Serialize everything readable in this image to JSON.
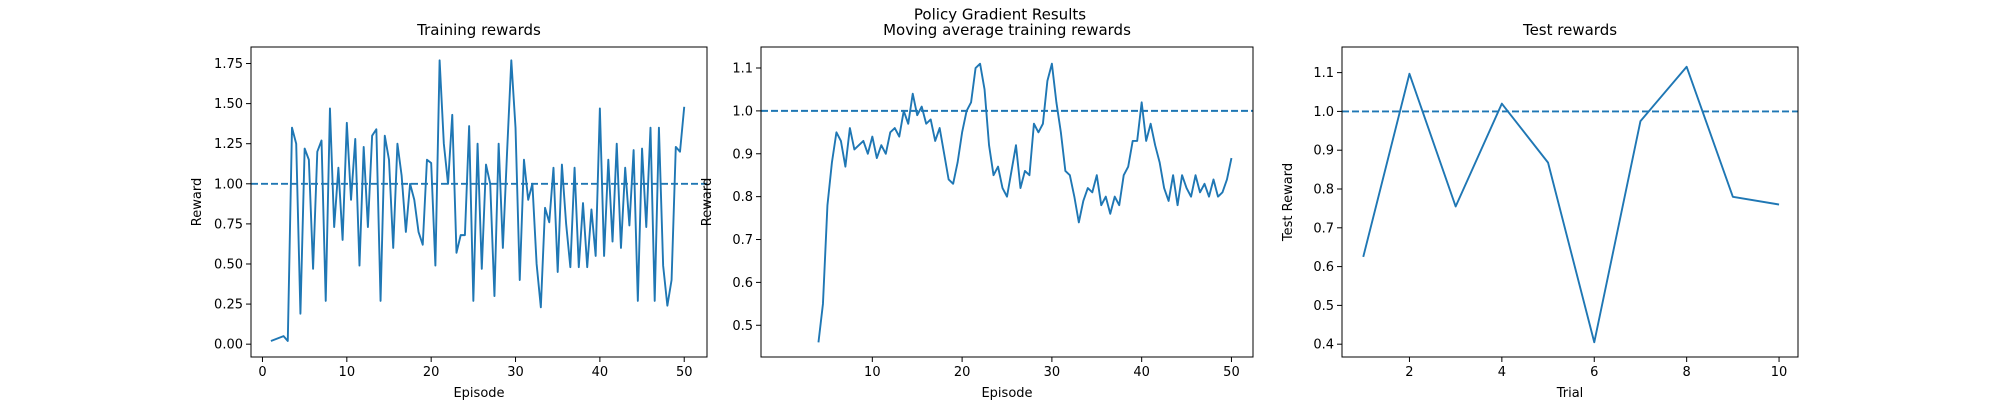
{
  "title": "Policy Gradient Results",
  "chart_data": [
    {
      "type": "line",
      "title": "Training rewards",
      "xlabel": "Episode",
      "ylabel": "Reward",
      "x": [
        1,
        1.5,
        2,
        2.5,
        3,
        3.5,
        4,
        4.5,
        5,
        5.5,
        6,
        6.5,
        7,
        7.5,
        8,
        8.5,
        9,
        9.5,
        10,
        10.5,
        11,
        11.5,
        12,
        12.5,
        13,
        13.5,
        14,
        14.5,
        15,
        15.5,
        16,
        16.5,
        17,
        17.5,
        18,
        18.5,
        19,
        19.5,
        20,
        20.5,
        21,
        21.5,
        22,
        22.5,
        23,
        23.5,
        24,
        24.5,
        25,
        25.5,
        26,
        26.5,
        27,
        27.5,
        28,
        28.5,
        29,
        29.5,
        30,
        30.5,
        31,
        31.5,
        32,
        32.5,
        33,
        33.5,
        34,
        34.5,
        35,
        35.5,
        36,
        36.5,
        37,
        37.5,
        38,
        38.5,
        39,
        39.5,
        40,
        40.5,
        41,
        41.5,
        42,
        42.5,
        43,
        43.5,
        44,
        44.5,
        45,
        45.5,
        46,
        46.5,
        47,
        47.5,
        48,
        48.5,
        49,
        49.5,
        50
      ],
      "series": [
        {
          "color": "#1f77b4",
          "values": [
            0.02,
            0.03,
            0.04,
            0.05,
            0.02,
            1.35,
            1.25,
            0.19,
            1.22,
            1.15,
            0.47,
            1.2,
            1.27,
            0.27,
            1.47,
            0.73,
            1.1,
            0.65,
            1.38,
            0.9,
            1.28,
            0.49,
            1.23,
            0.73,
            1.3,
            1.34,
            0.27,
            1.3,
            1.15,
            0.6,
            1.25,
            1.05,
            0.7,
            1.0,
            0.9,
            0.7,
            0.62,
            1.15,
            1.13,
            0.49,
            1.77,
            1.25,
            1.0,
            1.43,
            0.57,
            0.68,
            0.68,
            1.36,
            0.27,
            1.25,
            0.47,
            1.12,
            1.0,
            0.3,
            1.25,
            0.6,
            1.2,
            1.77,
            1.35,
            0.4,
            1.15,
            0.9,
            1.0,
            0.5,
            0.23,
            0.85,
            0.76,
            1.1,
            0.45,
            1.12,
            0.75,
            0.48,
            1.1,
            0.48,
            0.88,
            0.48,
            0.84,
            0.55,
            1.47,
            0.55,
            1.15,
            0.64,
            1.25,
            0.6,
            1.1,
            0.74,
            1.21,
            0.27,
            1.22,
            0.73,
            1.35,
            0.27,
            1.35,
            0.49,
            0.24,
            0.4,
            1.23,
            1.2,
            1.48
          ]
        }
      ],
      "hline": 1,
      "hline_color": "#1f77b4",
      "xlim": [
        -1.36,
        52.7
      ],
      "ylim": [
        -0.08,
        1.853
      ],
      "xticks": [
        0,
        10,
        20,
        30,
        40,
        50
      ],
      "yticks": [
        {
          "value": 0,
          "label": "0.00"
        },
        {
          "value": 0.25,
          "label": "0.25"
        },
        {
          "value": 0.5,
          "label": "0.50"
        },
        {
          "value": 0.75,
          "label": "0.75"
        },
        {
          "value": 1,
          "label": "1.00"
        },
        {
          "value": 1.25,
          "label": "1.25"
        },
        {
          "value": 1.5,
          "label": "1.50"
        },
        {
          "value": 1.75,
          "label": "1.75"
        }
      ]
    },
    {
      "type": "line",
      "title": "Moving average training rewards",
      "xlabel": "Episode",
      "ylabel": "Reward",
      "x": [
        4,
        4.5,
        5,
        5.5,
        6,
        6.5,
        7,
        7.5,
        8,
        8.5,
        9,
        9.5,
        10,
        10.5,
        11,
        11.5,
        12,
        12.5,
        13,
        13.5,
        14,
        14.5,
        15,
        15.5,
        16,
        16.5,
        17,
        17.5,
        18,
        18.5,
        19,
        19.5,
        20,
        20.5,
        21,
        21.5,
        22,
        22.5,
        23,
        23.5,
        24,
        24.5,
        25,
        25.5,
        26,
        26.5,
        27,
        27.5,
        28,
        28.5,
        29,
        29.5,
        30,
        30.5,
        31,
        31.5,
        32,
        32.5,
        33,
        33.5,
        34,
        34.5,
        35,
        35.5,
        36,
        36.5,
        37,
        37.5,
        38,
        38.5,
        39,
        39.5,
        40,
        40.5,
        41,
        41.5,
        42,
        42.5,
        43,
        43.5,
        44,
        44.5,
        45,
        45.5,
        46,
        46.5,
        47,
        47.5,
        48,
        48.5,
        49,
        49.5,
        50
      ],
      "series": [
        {
          "color": "#1f77b4",
          "values": [
            0.46,
            0.55,
            0.78,
            0.88,
            0.95,
            0.93,
            0.87,
            0.96,
            0.91,
            0.92,
            0.93,
            0.9,
            0.94,
            0.89,
            0.92,
            0.9,
            0.95,
            0.96,
            0.94,
            1.0,
            0.97,
            1.04,
            0.99,
            1.01,
            0.97,
            0.98,
            0.93,
            0.96,
            0.9,
            0.84,
            0.83,
            0.88,
            0.95,
            1.0,
            1.02,
            1.1,
            1.11,
            1.05,
            0.92,
            0.85,
            0.87,
            0.82,
            0.8,
            0.86,
            0.92,
            0.82,
            0.86,
            0.85,
            0.97,
            0.95,
            0.97,
            1.07,
            1.11,
            1.02,
            0.95,
            0.86,
            0.85,
            0.8,
            0.74,
            0.79,
            0.82,
            0.81,
            0.85,
            0.78,
            0.8,
            0.76,
            0.8,
            0.78,
            0.85,
            0.87,
            0.93,
            0.93,
            1.02,
            0.93,
            0.97,
            0.92,
            0.88,
            0.82,
            0.79,
            0.85,
            0.78,
            0.85,
            0.82,
            0.8,
            0.85,
            0.81,
            0.83,
            0.8,
            0.84,
            0.8,
            0.81,
            0.84,
            0.89
          ]
        }
      ],
      "hline": 1,
      "hline_color": "#1f77b4",
      "xlim": [
        -2.4,
        52.4
      ],
      "ylim": [
        0.426,
        1.149
      ],
      "xticks": [
        10,
        20,
        30,
        40,
        50
      ],
      "yticks": [
        0.5,
        0.6,
        0.7,
        0.8,
        0.9,
        {
          "value": 1,
          "label": "1.0"
        },
        1.1
      ]
    },
    {
      "type": "line",
      "title": "Test rewards",
      "xlabel": "Trial",
      "ylabel": "Test Reward",
      "x": [
        1,
        2,
        3,
        4,
        5,
        6,
        7,
        8,
        9,
        10
      ],
      "series": [
        {
          "color": "#1f77b4",
          "values": [
            0.625,
            1.097,
            0.755,
            1.02,
            0.868,
            0.405,
            0.975,
            1.115,
            0.78,
            0.76
          ]
        }
      ],
      "hline": 1,
      "hline_color": "#1f77b4",
      "xlim": [
        0.54,
        10.41
      ],
      "ylim": [
        0.367,
        1.166
      ],
      "xticks": [
        2,
        4,
        6,
        8,
        10
      ],
      "yticks": [
        0.4,
        0.5,
        0.6,
        0.7,
        0.8,
        0.9,
        {
          "value": 1,
          "label": "1.0"
        },
        1.1
      ]
    }
  ]
}
